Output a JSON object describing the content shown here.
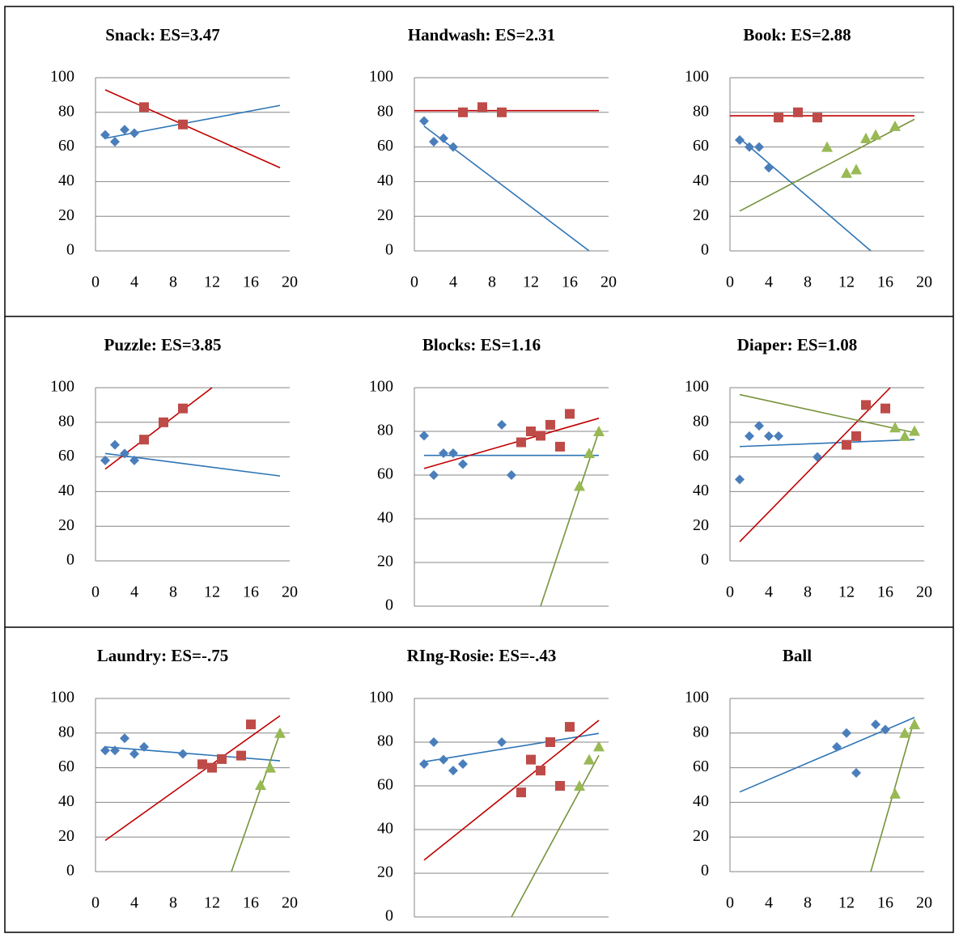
{
  "chart_data": [
    {
      "type": "scatter",
      "title": "Snack: ES=3.47",
      "xlim": [
        0,
        20
      ],
      "xticks": [
        0,
        4,
        8,
        12,
        16,
        20
      ],
      "ylim": [
        0,
        100
      ],
      "yticks": [
        0,
        20,
        40,
        60,
        80,
        100
      ],
      "grid": true,
      "series": [
        {
          "color": "#4a7ebb",
          "marker": "diamond",
          "x": [
            1,
            2,
            3,
            4
          ],
          "values": [
            67,
            63,
            70,
            68
          ],
          "trend": {
            "color": "#2e75b6",
            "x": [
              1,
              19
            ],
            "values": [
              65,
              84
            ]
          }
        },
        {
          "color": "#be4b48",
          "marker": "square",
          "x": [
            5,
            9
          ],
          "values": [
            83,
            73
          ],
          "trend": {
            "color": "#c00000",
            "x": [
              1,
              19
            ],
            "values": [
              93,
              48
            ]
          }
        }
      ]
    },
    {
      "type": "scatter",
      "title": "Handwash: ES=2.31",
      "xlim": [
        0,
        20
      ],
      "xticks": [
        0,
        4,
        8,
        12,
        16,
        20
      ],
      "ylim": [
        0,
        100
      ],
      "yticks": [
        0,
        20,
        40,
        60,
        80,
        100
      ],
      "grid": true,
      "series": [
        {
          "color": "#4a7ebb",
          "marker": "diamond",
          "x": [
            1,
            2,
            3,
            4
          ],
          "values": [
            75,
            63,
            65,
            60
          ],
          "trend": {
            "color": "#2e75b6",
            "x": [
              1,
              18
            ],
            "values": [
              72,
              0
            ]
          }
        },
        {
          "color": "#be4b48",
          "marker": "square",
          "x": [
            5,
            7,
            9
          ],
          "values": [
            80,
            83,
            80
          ],
          "trend": {
            "color": "#c00000",
            "x": [
              0,
              19
            ],
            "values": [
              81,
              81
            ]
          }
        }
      ]
    },
    {
      "type": "scatter",
      "title": "Book: ES=2.88",
      "xlim": [
        0,
        20
      ],
      "xticks": [
        0,
        4,
        8,
        12,
        16,
        20
      ],
      "ylim": [
        0,
        100
      ],
      "yticks": [
        0,
        20,
        40,
        60,
        80,
        100
      ],
      "grid": true,
      "series": [
        {
          "color": "#4a7ebb",
          "marker": "diamond",
          "x": [
            1,
            2,
            3,
            4
          ],
          "values": [
            64,
            60,
            60,
            48
          ],
          "trend": {
            "color": "#2e75b6",
            "x": [
              1,
              14.5
            ],
            "values": [
              65,
              0
            ]
          }
        },
        {
          "color": "#be4b48",
          "marker": "square",
          "x": [
            5,
            7,
            9
          ],
          "values": [
            77,
            80,
            77
          ],
          "trend": {
            "color": "#c00000",
            "x": [
              0,
              19
            ],
            "values": [
              78,
              78
            ]
          }
        },
        {
          "color": "#98b954",
          "marker": "triangle",
          "x": [
            10,
            12,
            13,
            14,
            15,
            17
          ],
          "values": [
            60,
            45,
            47,
            65,
            67,
            72
          ],
          "trend": {
            "color": "#77933c",
            "x": [
              1,
              19
            ],
            "values": [
              23,
              76
            ]
          }
        }
      ]
    },
    {
      "type": "scatter",
      "title": "Puzzle: ES=3.85",
      "xlim": [
        0,
        20
      ],
      "xticks": [
        0,
        4,
        8,
        12,
        16,
        20
      ],
      "ylim": [
        0,
        100
      ],
      "yticks": [
        0,
        20,
        40,
        60,
        80,
        100
      ],
      "grid": true,
      "series": [
        {
          "color": "#4a7ebb",
          "marker": "diamond",
          "x": [
            1,
            2,
            3,
            4
          ],
          "values": [
            58,
            67,
            62,
            58
          ],
          "trend": {
            "color": "#2e75b6",
            "x": [
              1,
              19
            ],
            "values": [
              62,
              49
            ]
          }
        },
        {
          "color": "#be4b48",
          "marker": "square",
          "x": [
            5,
            7,
            9
          ],
          "values": [
            70,
            80,
            88
          ],
          "trend": {
            "color": "#c00000",
            "x": [
              1,
              12
            ],
            "values": [
              53,
              100
            ]
          }
        }
      ]
    },
    {
      "type": "scatter",
      "title": "Blocks: ES=1.16",
      "xlim": [
        0,
        20
      ],
      "ylim": [
        0,
        100
      ],
      "yticks": [
        0,
        20,
        40,
        60,
        80,
        100
      ],
      "grid": true,
      "series": [
        {
          "color": "#4a7ebb",
          "marker": "diamond",
          "x": [
            1,
            2,
            3,
            4,
            5,
            9,
            10
          ],
          "values": [
            78,
            60,
            70,
            70,
            65,
            83,
            60
          ],
          "trend": {
            "color": "#2e75b6",
            "x": [
              1,
              19
            ],
            "values": [
              69,
              69
            ]
          }
        },
        {
          "color": "#be4b48",
          "marker": "square",
          "x": [
            11,
            12,
            13,
            14,
            15,
            16
          ],
          "values": [
            75,
            80,
            78,
            83,
            73,
            88
          ],
          "trend": {
            "color": "#c00000",
            "x": [
              1,
              19
            ],
            "values": [
              63,
              86
            ]
          }
        },
        {
          "color": "#98b954",
          "marker": "triangle",
          "x": [
            17,
            18,
            19
          ],
          "values": [
            55,
            70,
            80
          ],
          "trend": {
            "color": "#77933c",
            "x": [
              13,
              19
            ],
            "values": [
              0,
              80
            ]
          }
        }
      ]
    },
    {
      "type": "scatter",
      "title": "Diaper: ES=1.08",
      "xlim": [
        0,
        20
      ],
      "xticks": [
        0,
        4,
        8,
        12,
        16,
        20
      ],
      "ylim": [
        0,
        100
      ],
      "yticks": [
        0,
        20,
        40,
        60,
        80,
        100
      ],
      "grid": true,
      "series": [
        {
          "color": "#4a7ebb",
          "marker": "diamond",
          "x": [
            1,
            2,
            3,
            4,
            5,
            9
          ],
          "values": [
            47,
            72,
            78,
            72,
            72,
            60
          ],
          "trend": {
            "color": "#2e75b6",
            "x": [
              1,
              19
            ],
            "values": [
              66,
              70
            ]
          }
        },
        {
          "color": "#be4b48",
          "marker": "square",
          "x": [
            12,
            13,
            14,
            16
          ],
          "values": [
            67,
            72,
            90,
            88
          ],
          "trend": {
            "color": "#c00000",
            "x": [
              1,
              16.5
            ],
            "values": [
              11,
              100
            ]
          }
        },
        {
          "color": "#98b954",
          "marker": "triangle",
          "x": [
            17,
            18,
            19
          ],
          "values": [
            77,
            72,
            75
          ],
          "trend": {
            "color": "#77933c",
            "x": [
              1,
              19
            ],
            "values": [
              96,
              74
            ]
          }
        }
      ]
    },
    {
      "type": "scatter",
      "title": "Laundry: ES=-.75",
      "xlim": [
        0,
        20
      ],
      "xticks": [
        0,
        4,
        8,
        12,
        16,
        20
      ],
      "ylim": [
        0,
        100
      ],
      "yticks": [
        0,
        20,
        40,
        60,
        80,
        100
      ],
      "grid": true,
      "series": [
        {
          "color": "#4a7ebb",
          "marker": "diamond",
          "x": [
            1,
            2,
            3,
            4,
            5,
            9
          ],
          "values": [
            70,
            70,
            77,
            68,
            72,
            68
          ],
          "trend": {
            "color": "#2e75b6",
            "x": [
              1,
              19
            ],
            "values": [
              72,
              64
            ]
          }
        },
        {
          "color": "#be4b48",
          "marker": "square",
          "x": [
            11,
            12,
            13,
            15,
            16
          ],
          "values": [
            62,
            60,
            65,
            67,
            85
          ],
          "trend": {
            "color": "#c00000",
            "x": [
              1,
              19
            ],
            "values": [
              18,
              90
            ]
          }
        },
        {
          "color": "#98b954",
          "marker": "triangle",
          "x": [
            17,
            18,
            19
          ],
          "values": [
            50,
            60,
            80
          ],
          "trend": {
            "color": "#77933c",
            "x": [
              14,
              19
            ],
            "values": [
              0,
              80
            ]
          }
        }
      ]
    },
    {
      "type": "scatter",
      "title": "RIng-Rosie: ES=-.43",
      "xlim": [
        0,
        20
      ],
      "ylim": [
        0,
        100
      ],
      "yticks": [
        0,
        20,
        40,
        60,
        80,
        100
      ],
      "grid": true,
      "series": [
        {
          "color": "#4a7ebb",
          "marker": "diamond",
          "x": [
            1,
            2,
            3,
            4,
            5,
            9
          ],
          "values": [
            70,
            80,
            72,
            67,
            70,
            80
          ],
          "trend": {
            "color": "#2e75b6",
            "x": [
              1,
              19
            ],
            "values": [
              71,
              84
            ]
          }
        },
        {
          "color": "#be4b48",
          "marker": "square",
          "x": [
            11,
            12,
            13,
            14,
            15,
            16
          ],
          "values": [
            57,
            72,
            67,
            80,
            60,
            87
          ],
          "trend": {
            "color": "#c00000",
            "x": [
              1,
              19
            ],
            "values": [
              26,
              90
            ]
          }
        },
        {
          "color": "#98b954",
          "marker": "triangle",
          "x": [
            17,
            18,
            19
          ],
          "values": [
            60,
            72,
            78
          ],
          "trend": {
            "color": "#77933c",
            "x": [
              10,
              19
            ],
            "values": [
              0,
              74
            ]
          }
        }
      ]
    },
    {
      "type": "scatter",
      "title": "Ball",
      "xlim": [
        0,
        20
      ],
      "xticks": [
        0,
        4,
        8,
        12,
        16,
        20
      ],
      "ylim": [
        0,
        100
      ],
      "yticks": [
        0,
        20,
        40,
        60,
        80,
        100
      ],
      "grid": true,
      "series": [
        {
          "color": "#4a7ebb",
          "marker": "diamond",
          "x": [
            11,
            12,
            13,
            15,
            16
          ],
          "values": [
            72,
            80,
            57,
            85,
            82
          ],
          "trend": {
            "color": "#2e75b6",
            "x": [
              1,
              19
            ],
            "values": [
              46,
              89
            ]
          }
        },
        {
          "color": "#98b954",
          "marker": "triangle",
          "x": [
            17,
            18,
            19
          ],
          "values": [
            45,
            80,
            85
          ],
          "trend": {
            "color": "#77933c",
            "x": [
              14.5,
              19
            ],
            "values": [
              0,
              88
            ]
          }
        }
      ]
    }
  ]
}
